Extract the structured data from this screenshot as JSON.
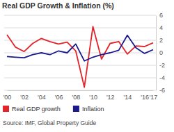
{
  "chart_data": {
    "type": "line",
    "title": "Real GDP Growth & Inflation (%)",
    "source": "Source: IMF, Global Property Guide",
    "categories": [
      "'00",
      null,
      "'02",
      null,
      "'04",
      null,
      "'06",
      null,
      "'08",
      null,
      "'10",
      null,
      "'12",
      null,
      "'14",
      null,
      "'16",
      "'17"
    ],
    "series": [
      {
        "name": "Real GDP growth",
        "color": "#e3242b",
        "values": [
          2.9,
          0.9,
          0.2,
          1.5,
          2.3,
          1.8,
          1.4,
          1.7,
          0.3,
          -5.5,
          4.2,
          -1.0,
          1.5,
          1.8,
          -0.2,
          1.1,
          1.0,
          1.6
        ]
      },
      {
        "name": "Inflation",
        "color": "#1a1a8c",
        "values": [
          -0.6,
          -0.7,
          -0.8,
          -0.3,
          0.0,
          -0.3,
          0.3,
          0.0,
          1.4,
          -1.3,
          -0.7,
          -0.3,
          0.0,
          0.4,
          2.8,
          0.8,
          -0.1,
          0.5
        ]
      }
    ],
    "ylim": [
      -6,
      6
    ],
    "yticks": [
      -6,
      -4,
      -2,
      0,
      2,
      4,
      6
    ],
    "grid": true,
    "legend": "bottom-left"
  }
}
